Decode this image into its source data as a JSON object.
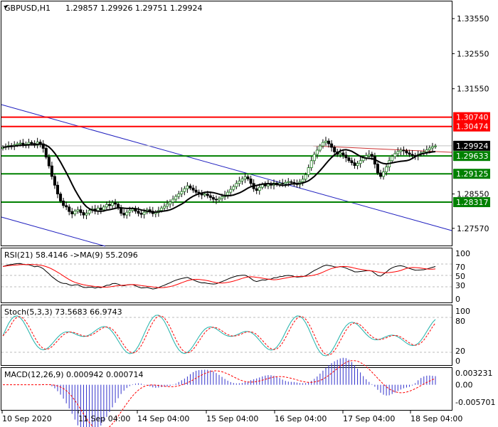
{
  "header": {
    "symbol_label": "GBPUSD,H1",
    "ohlc": "1.29857 1.29926 1.29751 1.29924"
  },
  "colors": {
    "bull": "#1f7a1f",
    "bear": "#000000",
    "ma": "#000000",
    "trend": "#1f1fbf",
    "resistance_red": "#ff0000",
    "support_green": "#008000",
    "current_price_box": "#000000",
    "rsi": "#000000",
    "rsi_ma": "#ff0000",
    "stoch_main": "#20b2aa",
    "stoch_signal": "#ff0000",
    "macd_hist": "#3333cc",
    "macd_signal": "#ff0000"
  },
  "price_axis": {
    "ticks": [
      "1.33550",
      "1.32550",
      "1.31550",
      "1.28550",
      "1.27570"
    ]
  },
  "levels": [
    {
      "label": "1.30740",
      "value": 1.3074,
      "color": "red",
      "boxed": true
    },
    {
      "label": "1.30474",
      "value": 1.30474,
      "color": "red",
      "boxed": true
    },
    {
      "label": "1.29924",
      "value": 1.29924,
      "color": "current",
      "boxed": true
    },
    {
      "label": "1.29633",
      "value": 1.29633,
      "color": "green",
      "boxed": true
    },
    {
      "label": "1.29125",
      "value": 1.29125,
      "color": "green",
      "boxed": true
    },
    {
      "label": "1.28317",
      "value": 1.28317,
      "color": "green",
      "boxed": true
    }
  ],
  "rsi": {
    "label": "RSI(21) 58.4146 ->MA(9) 55.2096",
    "ticks": [
      "100",
      "70",
      "50",
      "30",
      "0"
    ]
  },
  "stoch": {
    "label": "Stoch(5,3,3) 73.5683 66.9743",
    "ticks": [
      "100",
      "80",
      "20",
      "0"
    ]
  },
  "macd": {
    "label": "MACD(12,26,9) 0.000942 0.000714",
    "ticks": [
      "0.003231",
      "0.00",
      "-0.005701"
    ]
  },
  "time_axis": {
    "labels": [
      "10 Sep 2020",
      "11 Sep 04:00",
      "14 Sep 04:00",
      "15 Sep 04:00",
      "16 Sep 04:00",
      "17 Sep 04:00",
      "18 Sep 04:00"
    ]
  },
  "chart_data": {
    "type": "candlestick",
    "title": "GBPUSD,H1",
    "ylim": [
      1.2708,
      1.3404
    ],
    "x_labels": [
      "10 Sep 2020",
      "11 Sep 04:00",
      "14 Sep 04:00",
      "15 Sep 04:00",
      "16 Sep 04:00",
      "17 Sep 04:00",
      "18 Sep 04:00"
    ],
    "close": [
      1.2988,
      1.299,
      1.2993,
      1.2992,
      1.2995,
      1.2998,
      1.3,
      1.2996,
      1.2997,
      1.3002,
      1.2999,
      1.2994,
      1.3003,
      1.2998,
      1.2985,
      1.296,
      1.2935,
      1.2905,
      1.288,
      1.2855,
      1.2835,
      1.2822,
      1.2818,
      1.2805,
      1.2798,
      1.2806,
      1.281,
      1.2802,
      1.2795,
      1.28,
      1.2808,
      1.2812,
      1.2806,
      1.2815,
      1.281,
      1.2818,
      1.2825,
      1.2822,
      1.283,
      1.2826,
      1.2815,
      1.28,
      1.2795,
      1.2803,
      1.2808,
      1.2812,
      1.2806,
      1.28,
      1.2797,
      1.2803,
      1.281,
      1.2806,
      1.2799,
      1.2802,
      1.2808,
      1.2815,
      1.282,
      1.2826,
      1.2832,
      1.284,
      1.2848,
      1.2855,
      1.2862,
      1.287,
      1.2878,
      1.2872,
      1.2866,
      1.286,
      1.2856,
      1.2852,
      1.2855,
      1.285,
      1.2845,
      1.284,
      1.2838,
      1.2842,
      1.2847,
      1.2852,
      1.286,
      1.2868,
      1.2876,
      1.2885,
      1.2892,
      1.2898,
      1.2904,
      1.2898,
      1.2885,
      1.287,
      1.2865,
      1.2874,
      1.2882,
      1.2878,
      1.2883,
      1.288,
      1.2886,
      1.2882,
      1.2886,
      1.2884,
      1.2888,
      1.289,
      1.2888,
      1.2884,
      1.2882,
      1.289,
      1.2897,
      1.291,
      1.293,
      1.295,
      1.2968,
      1.298,
      1.2992,
      1.3002,
      1.3006,
      1.2998,
      1.2988,
      1.2975,
      1.2968,
      1.2972,
      1.2966,
      1.2958,
      1.295,
      1.2944,
      1.2936,
      1.2942,
      1.295,
      1.2958,
      1.2964,
      1.2968,
      1.2962,
      1.294,
      1.2915,
      1.2905,
      1.2918,
      1.2932,
      1.295,
      1.2962,
      1.297,
      1.2976,
      1.298,
      1.2978,
      1.2972,
      1.2968,
      1.2965,
      1.2963,
      1.2968,
      1.2972,
      1.2975,
      1.2981,
      1.2986,
      1.299,
      1.2992
    ],
    "moving_average": "MA on price",
    "levels": [
      1.3074,
      1.30474,
      1.29633,
      1.29125,
      1.28317
    ],
    "current_price": 1.29924,
    "rsi": {
      "value": 58.4146,
      "ma": 55.2096,
      "ylim": [
        0,
        100
      ],
      "levels": [
        70,
        50,
        30
      ]
    },
    "stochastic": {
      "main": 73.5683,
      "signal": 66.9743,
      "ylim": [
        0,
        100
      ],
      "levels": [
        80,
        20
      ]
    },
    "macd": {
      "main": 0.000942,
      "signal": 0.000714,
      "ylim": [
        -0.005701,
        0.003231
      ]
    }
  }
}
